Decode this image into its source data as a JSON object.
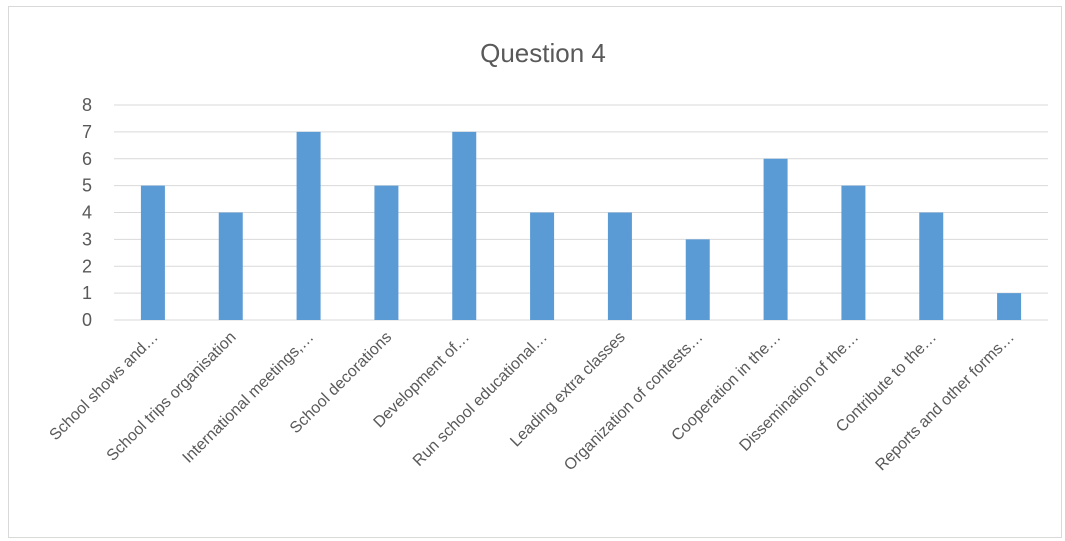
{
  "chart_data": {
    "type": "bar",
    "title": "Question 4",
    "xlabel": "",
    "ylabel": "",
    "ylim": [
      0,
      8
    ],
    "yticks": [
      0,
      1,
      2,
      3,
      4,
      5,
      6,
      7,
      8
    ],
    "grid": true,
    "legend": "none",
    "bar_color": "#5b9bd5",
    "categories": [
      "School shows and…",
      "School trips organisation",
      "International meetings,…",
      "School decorations",
      "Development of…",
      "Run school educational…",
      "Leading extra classes",
      "Organization of contests…",
      "Cooperation in the…",
      "Dissemination of the…",
      "Contribute to the…",
      "Reports and other forms…"
    ],
    "values": [
      5,
      4,
      7,
      5,
      7,
      4,
      4,
      3,
      6,
      5,
      4,
      1
    ]
  }
}
